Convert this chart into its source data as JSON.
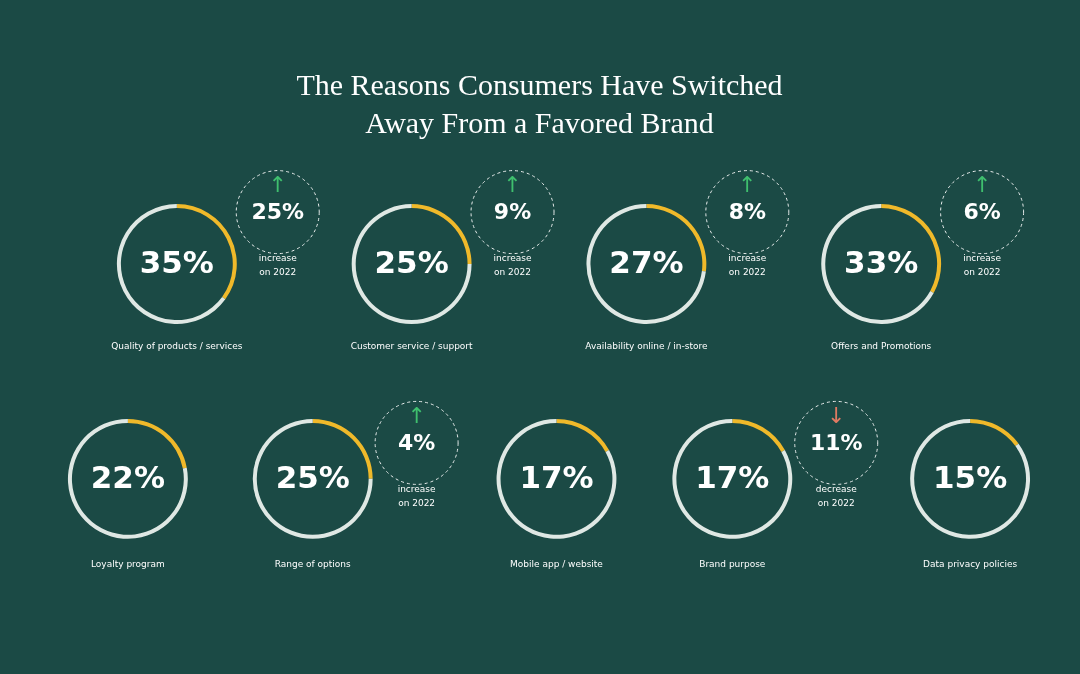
{
  "chart_data": [
    {
      "type": "other",
      "title": "The Reasons Consumers Have Switched Away From a Favored Brand"
    },
    {
      "type": "donut",
      "title": "Quality of products / services",
      "categories": [
        null,
        null
      ],
      "values": [
        35,
        65
      ],
      "colors": [
        "#f0b92a",
        "#dfe8e4"
      ],
      "value_labels": [
        "35%",
        null
      ],
      "annotations": [
        "↑",
        "25%",
        "increase",
        "on 2022"
      ]
    },
    {
      "type": "donut",
      "title": "Customer service / support",
      "categories": [
        null,
        null
      ],
      "values": [
        25,
        75
      ],
      "colors": [
        "#f0b92a",
        "#dfe8e4"
      ],
      "value_labels": [
        "25%",
        null
      ],
      "annotations": [
        "↑",
        "9%",
        "increase",
        "on 2022"
      ]
    },
    {
      "type": "donut",
      "title": "Availability online / in-store",
      "categories": [
        null,
        null
      ],
      "values": [
        27,
        73
      ],
      "colors": [
        "#f0b92a",
        "#dfe8e4"
      ],
      "value_labels": [
        "27%",
        null
      ],
      "annotations": [
        "↑",
        "8%",
        "increase",
        "on 2022"
      ]
    },
    {
      "type": "donut",
      "title": "Offers and Promotions",
      "categories": [
        null,
        null
      ],
      "values": [
        33,
        67
      ],
      "colors": [
        "#f0b92a",
        "#dfe8e4"
      ],
      "value_labels": [
        "33%",
        null
      ],
      "annotations": [
        "↑",
        "6%",
        "increase",
        "on 2022"
      ]
    },
    {
      "type": "donut",
      "title": "Loyalty program",
      "categories": [
        null,
        null
      ],
      "values": [
        22,
        78
      ],
      "colors": [
        "#f0b92a",
        "#dfe8e4"
      ],
      "value_labels": [
        "22%",
        null
      ]
    },
    {
      "type": "donut",
      "title": "Range of options",
      "categories": [
        null,
        null
      ],
      "values": [
        25,
        75
      ],
      "colors": [
        "#f0b92a",
        "#dfe8e4"
      ],
      "value_labels": [
        "25%",
        null
      ],
      "annotations": [
        "↑",
        "4%",
        "increase",
        "on 2022"
      ]
    },
    {
      "type": "donut",
      "title": "Mobile app / website",
      "categories": [
        null,
        null
      ],
      "values": [
        17,
        83
      ],
      "colors": [
        "#f0b92a",
        "#dfe8e4"
      ],
      "value_labels": [
        "17%",
        null
      ]
    },
    {
      "type": "donut",
      "title": "Brand purpose",
      "categories": [
        null,
        null
      ],
      "values": [
        17,
        83
      ],
      "colors": [
        "#f0b92a",
        "#dfe8e4"
      ],
      "value_labels": [
        "17%",
        null
      ],
      "annotations": [
        "↓",
        "11%",
        "decrease",
        "on 2022"
      ]
    },
    {
      "type": "donut",
      "title": "Data privacy policies",
      "categories": [
        null,
        null
      ],
      "values": [
        15,
        85
      ],
      "colors": [
        "#f0b92a",
        "#dfe8e4"
      ],
      "value_labels": [
        "15%",
        null
      ]
    }
  ]
}
